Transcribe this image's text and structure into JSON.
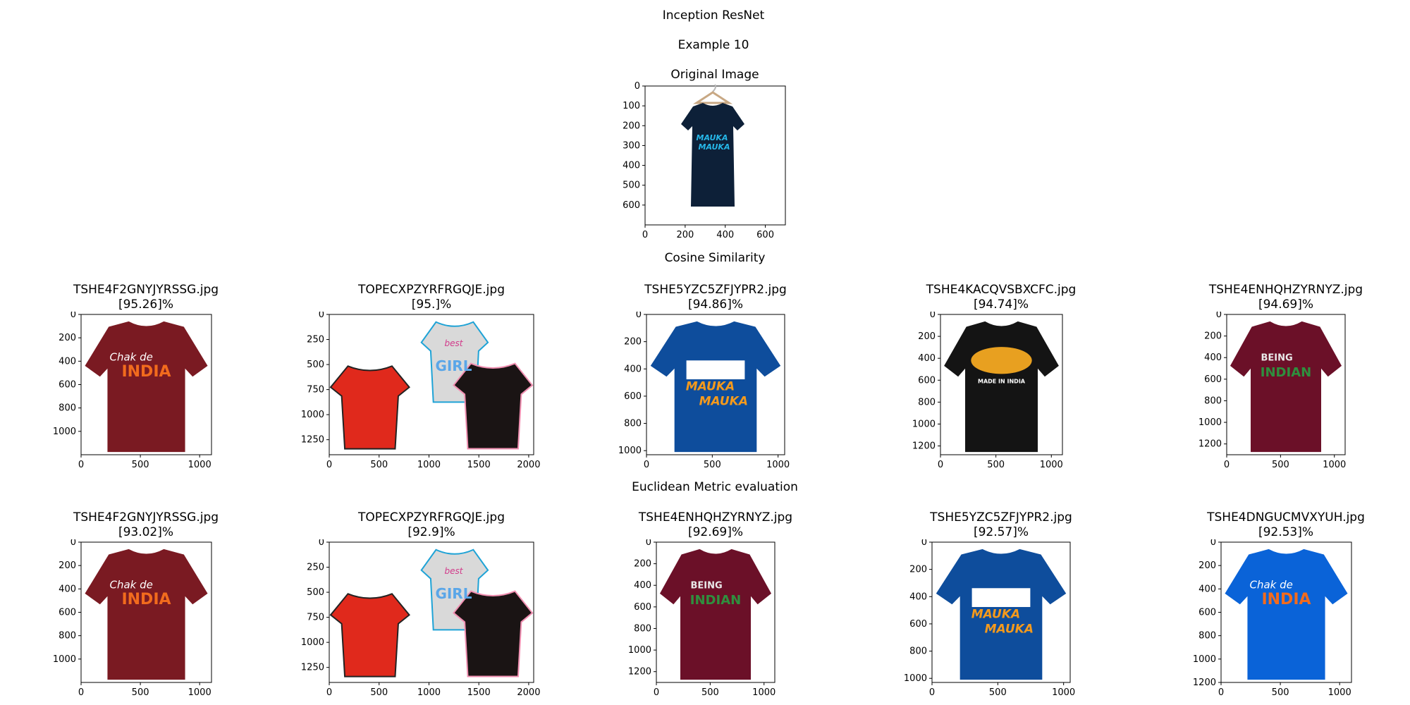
{
  "figure": {
    "title": "Inception ResNet",
    "subtitle": "Example 10"
  },
  "original": {
    "title": "Original Image",
    "x_ticks": [
      "0",
      "200",
      "400",
      "600"
    ],
    "y_ticks": [
      "0",
      "100",
      "200",
      "300",
      "400",
      "500",
      "600"
    ],
    "shirt_text": [
      "MAUKA",
      "MAUKA"
    ]
  },
  "sections": {
    "cosine_title": "Cosine Similarity",
    "euclid_title": "Euclidean Metric evaluation"
  },
  "cosine_results": [
    {
      "file": "TSHE4F2GNYJYRSSG.jpg",
      "score": "[95.26]%",
      "design": "chak-de-india",
      "color": "#7a1a22",
      "x_ticks": [
        "0",
        "500",
        "1000"
      ],
      "y_ticks": [
        "0",
        "200",
        "400",
        "600",
        "800",
        "1000"
      ],
      "print": [
        "Chak de",
        "INDIA"
      ]
    },
    {
      "file": "TOPECXPZYRFRGQJE.jpg",
      "score": "[95.]%",
      "design": "kids-tops",
      "color": "#e0291c",
      "x_ticks": [
        "0",
        "500",
        "1000",
        "1500",
        "2000"
      ],
      "y_ticks": [
        "0",
        "250",
        "500",
        "750",
        "1000",
        "1250"
      ],
      "print": [
        "best",
        "GIRL"
      ]
    },
    {
      "file": "TSHE5YZC5ZFJYPR2.jpg",
      "score": "[94.86]%",
      "design": "mauka-box",
      "color": "#0e4d9c",
      "x_ticks": [
        "0",
        "500",
        "1000"
      ],
      "y_ticks": [
        "0",
        "200",
        "400",
        "600",
        "800",
        "1000"
      ],
      "print": [
        "MAUKA",
        "MAUKA"
      ]
    },
    {
      "file": "TSHE4KACQVSBXCFC.jpg",
      "score": "[94.74]%",
      "design": "lion",
      "color": "#141414",
      "x_ticks": [
        "0",
        "500",
        "1000"
      ],
      "y_ticks": [
        "0",
        "200",
        "400",
        "600",
        "800",
        "1000",
        "1200"
      ],
      "print": [
        "MADE IN INDIA"
      ]
    },
    {
      "file": "TSHE4ENHQHZYRNYZ.jpg",
      "score": "[94.69]%",
      "design": "being-indian",
      "color": "#6b1028",
      "x_ticks": [
        "0",
        "500",
        "1000"
      ],
      "y_ticks": [
        "0",
        "200",
        "400",
        "600",
        "800",
        "1000",
        "1200"
      ],
      "print": [
        "BEING",
        "INDIAN"
      ]
    }
  ],
  "euclid_results": [
    {
      "file": "TSHE4F2GNYJYRSSG.jpg",
      "score": "[93.02]%",
      "design": "chak-de-india",
      "color": "#7a1a22",
      "x_ticks": [
        "0",
        "500",
        "1000"
      ],
      "y_ticks": [
        "0",
        "200",
        "400",
        "600",
        "800",
        "1000"
      ],
      "print": [
        "Chak de",
        "INDIA"
      ]
    },
    {
      "file": "TOPECXPZYRFRGQJE.jpg",
      "score": "[92.9]%",
      "design": "kids-tops",
      "color": "#e0291c",
      "x_ticks": [
        "0",
        "500",
        "1000",
        "1500",
        "2000"
      ],
      "y_ticks": [
        "0",
        "250",
        "500",
        "750",
        "1000",
        "1250"
      ],
      "print": [
        "best",
        "GIRL"
      ]
    },
    {
      "file": "TSHE4ENHQHZYRNYZ.jpg",
      "score": "[92.69]%",
      "design": "being-indian",
      "color": "#6b1028",
      "x_ticks": [
        "0",
        "500",
        "1000"
      ],
      "y_ticks": [
        "0",
        "200",
        "400",
        "600",
        "800",
        "1000",
        "1200"
      ],
      "print": [
        "BEING",
        "INDIAN"
      ]
    },
    {
      "file": "TSHE5YZC5ZFJYPR2.jpg",
      "score": "[92.57]%",
      "design": "mauka-box",
      "color": "#0e4d9c",
      "x_ticks": [
        "0",
        "500",
        "1000"
      ],
      "y_ticks": [
        "0",
        "200",
        "400",
        "600",
        "800",
        "1000"
      ],
      "print": [
        "MAUKA",
        "MAUKA"
      ]
    },
    {
      "file": "TSHE4DNGUCMVXYUH.jpg",
      "score": "[92.53]%",
      "design": "chak-de-india",
      "color": "#0a63d8",
      "x_ticks": [
        "0",
        "500",
        "1000"
      ],
      "y_ticks": [
        "0",
        "200",
        "400",
        "600",
        "800",
        "1000",
        "1200"
      ],
      "print": [
        "Chak de",
        "INDIA"
      ]
    }
  ]
}
